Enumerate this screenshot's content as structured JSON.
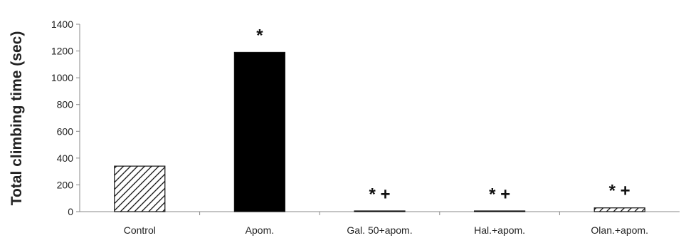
{
  "chart_data": {
    "type": "bar",
    "title": "",
    "xlabel": "",
    "ylabel": "Total climbing time (sec)",
    "ylim": [
      0,
      1400
    ],
    "yticks": [
      0,
      200,
      400,
      600,
      800,
      1000,
      1200,
      1400
    ],
    "grid": false,
    "categories": [
      "Control",
      "Apom.",
      "Gal. 50+apom.",
      "Hal.+apom.",
      "Olan.+apom."
    ],
    "values": [
      340,
      1190,
      2,
      2,
      28
    ],
    "bar_styles": [
      "hatched",
      "solid",
      "hatched",
      "hatched",
      "hatched"
    ],
    "annotations": [
      "",
      "*",
      "* +",
      "* +",
      "* +"
    ],
    "colors": {
      "bar_fill": "#000000",
      "axis": "#888888",
      "text": "#222222"
    }
  }
}
